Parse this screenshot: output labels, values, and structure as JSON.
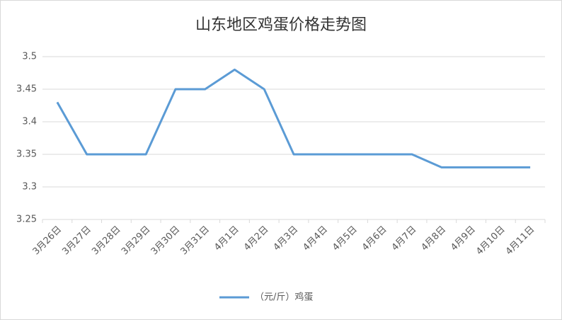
{
  "chart_data": {
    "type": "line",
    "title": "山东地区鸡蛋价格走势图",
    "categories": [
      "3月26日",
      "3月27日",
      "3月28日",
      "3月29日",
      "3月30日",
      "3月31日",
      "4月1日",
      "4月2日",
      "4月3日",
      "4月4日",
      "4月5日",
      "4月6日",
      "4月7日",
      "4月8日",
      "4月9日",
      "4月10日",
      "4月11日"
    ],
    "series": [
      {
        "name": "（元/斤）鸡蛋",
        "color": "#5b9bd5",
        "values": [
          3.43,
          3.35,
          3.35,
          3.35,
          3.45,
          3.45,
          3.48,
          3.45,
          3.35,
          3.35,
          3.35,
          3.35,
          3.35,
          3.33,
          3.33,
          3.33,
          3.33
        ]
      }
    ],
    "ylim": [
      3.25,
      3.5
    ],
    "yticks": [
      3.25,
      3.3,
      3.35,
      3.4,
      3.45,
      3.5
    ],
    "grid": true,
    "legend": "bottom"
  }
}
